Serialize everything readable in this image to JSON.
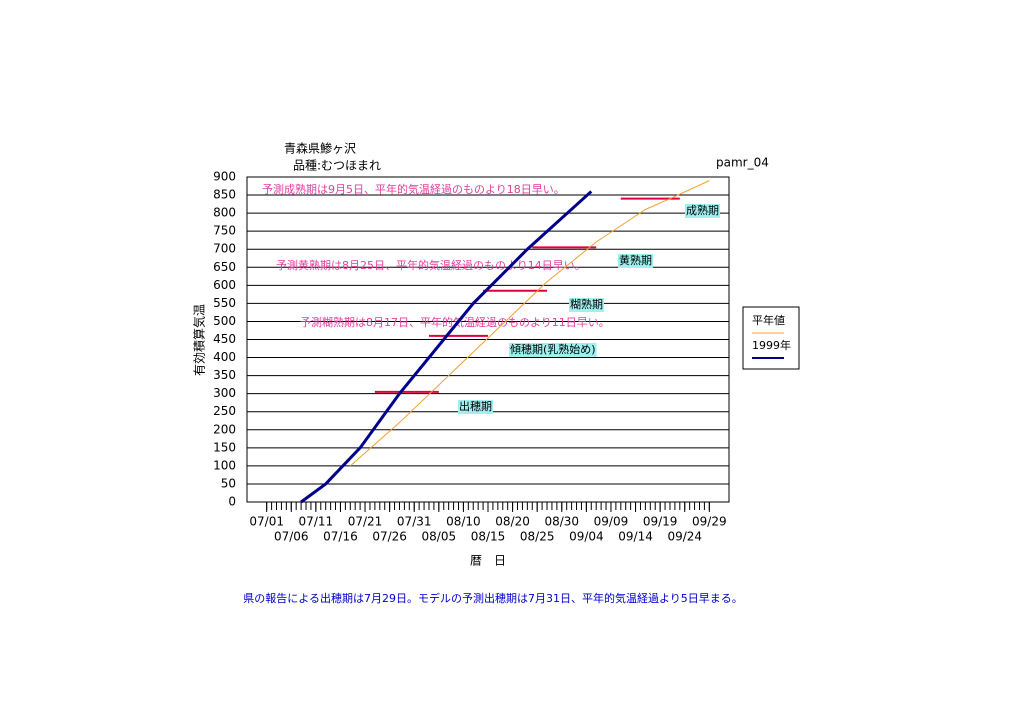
{
  "chart_data": {
    "type": "line",
    "title": "青森県鯵ヶ沢",
    "subtitle": "品種:むつほまれ",
    "code": "pamr_04",
    "ylabel": "有効積算気温",
    "xlabel": "暦　日",
    "footnote": "県の報告による出穂期は7月29日。モデルの予測出穂期は7月31日、平年的気温経過より5日早まる。",
    "xlim": [
      "06/27",
      "10/03"
    ],
    "xticks": [
      "07/01",
      "07/06",
      "07/11",
      "07/16",
      "07/21",
      "07/26",
      "07/31",
      "08/05",
      "08/10",
      "08/15",
      "08/20",
      "08/25",
      "08/30",
      "09/04",
      "09/09",
      "09/14",
      "09/19",
      "09/24",
      "09/29"
    ],
    "ylim": [
      0,
      900
    ],
    "yticks": [
      0,
      50,
      100,
      150,
      200,
      250,
      300,
      350,
      400,
      450,
      500,
      550,
      600,
      650,
      700,
      750,
      800,
      850,
      900
    ],
    "grid": true,
    "series": [
      {
        "name": "平年値",
        "color": "#f0a030",
        "x": [
          "07/18",
          "07/28",
          "08/07",
          "08/17",
          "08/27",
          "09/06",
          "09/16",
          "09/21",
          "09/29"
        ],
        "values": [
          100,
          220,
          350,
          480,
          610,
          720,
          810,
          840,
          890
        ]
      },
      {
        "name": "1999年",
        "color": "#00008b",
        "x": [
          "07/08",
          "07/13",
          "07/20",
          "07/28",
          "08/06",
          "08/12",
          "08/23",
          "09/05"
        ],
        "values": [
          0,
          50,
          150,
          300,
          450,
          550,
          700,
          860
        ]
      }
    ],
    "stage_bars": {
      "color": "#e0003c",
      "items": [
        {
          "value": 305,
          "start": "07/23",
          "end": "08/05"
        },
        {
          "value": 460,
          "start": "08/03",
          "end": "08/15"
        },
        {
          "value": 585,
          "start": "08/14",
          "end": "08/27"
        },
        {
          "value": 705,
          "start": "08/24",
          "end": "09/06"
        },
        {
          "value": 840,
          "start": "09/11",
          "end": "09/23"
        }
      ]
    },
    "predictions": {
      "color": "#e040a0",
      "texts": [
        "予測成熟期は9月5日、平年的気温経過のものより18日早い。",
        "予測黄熟期は8月25日、平年的気温経過のものより14日早い。",
        "予測糊熟期は8月17日、平年的気温経過のものより11日早い。"
      ]
    },
    "stages": {
      "color": "#a0f0f0",
      "texts": [
        "成熟期",
        "黄熟期",
        "糊熟期",
        "傾穂期(乳熟始め)",
        "出穂期"
      ]
    }
  }
}
